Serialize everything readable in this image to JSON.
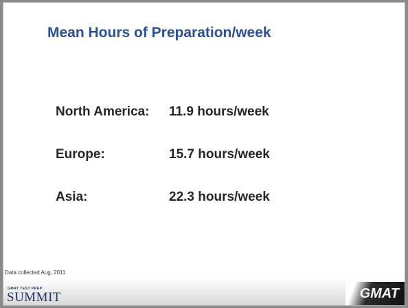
{
  "title": "Mean Hours of Preparation/week",
  "rows": [
    {
      "region": "North America:",
      "value": "11.9 hours/week"
    },
    {
      "region": "Europe:",
      "value": "15.7 hours/week"
    },
    {
      "region": "Asia:",
      "value": "22.3 hours/week"
    }
  ],
  "footnote": "Data collected Aug, 2011",
  "logo_left": {
    "tagline": "GMAT TEST PREP",
    "name": "SUMMIT"
  },
  "logo_right": "GMAT"
}
